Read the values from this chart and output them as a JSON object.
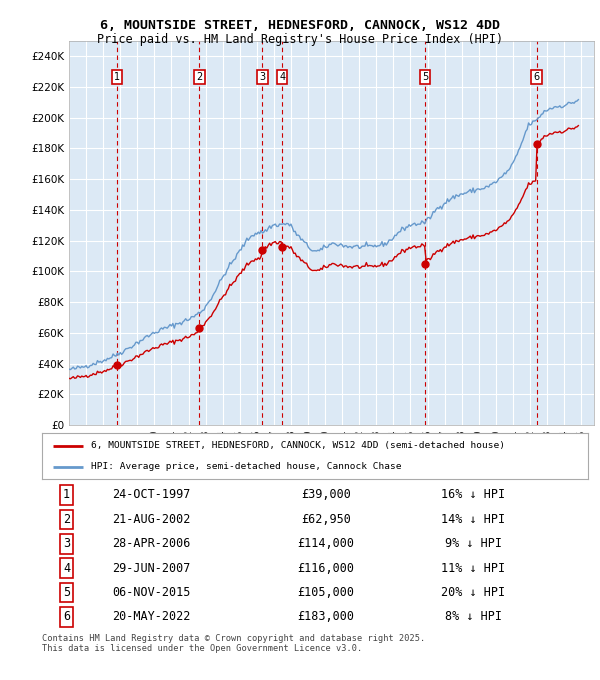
{
  "title_line1": "6, MOUNTSIDE STREET, HEDNESFORD, CANNOCK, WS12 4DD",
  "title_line2": "Price paid vs. HM Land Registry's House Price Index (HPI)",
  "ylim": [
    0,
    250000
  ],
  "yticks": [
    0,
    20000,
    40000,
    60000,
    80000,
    100000,
    120000,
    140000,
    160000,
    180000,
    200000,
    220000,
    240000
  ],
  "ytick_labels": [
    "£0",
    "£20K",
    "£40K",
    "£60K",
    "£80K",
    "£100K",
    "£120K",
    "£140K",
    "£160K",
    "£180K",
    "£200K",
    "£220K",
    "£240K"
  ],
  "xlim_start": 1995.0,
  "xlim_end": 2025.75,
  "bg_color": "#dce9f5",
  "grid_color": "#ffffff",
  "sale_dates_num": [
    1997.82,
    2002.64,
    2006.33,
    2007.49,
    2015.85,
    2022.39
  ],
  "sale_prices": [
    39000,
    62950,
    114000,
    116000,
    105000,
    183000
  ],
  "sale_labels": [
    "1",
    "2",
    "3",
    "4",
    "5",
    "6"
  ],
  "sale_color": "#cc0000",
  "hpi_color": "#6699cc",
  "legend_label_red": "6, MOUNTSIDE STREET, HEDNESFORD, CANNOCK, WS12 4DD (semi-detached house)",
  "legend_label_blue": "HPI: Average price, semi-detached house, Cannock Chase",
  "table_rows": [
    [
      "1",
      "24-OCT-1997",
      "£39,000",
      "16% ↓ HPI"
    ],
    [
      "2",
      "21-AUG-2002",
      "£62,950",
      "14% ↓ HPI"
    ],
    [
      "3",
      "28-APR-2006",
      "£114,000",
      "9% ↓ HPI"
    ],
    [
      "4",
      "29-JUN-2007",
      "£116,000",
      "11% ↓ HPI"
    ],
    [
      "5",
      "06-NOV-2015",
      "£105,000",
      "20% ↓ HPI"
    ],
    [
      "6",
      "20-MAY-2022",
      "£183,000",
      "8% ↓ HPI"
    ]
  ],
  "footer": "Contains HM Land Registry data © Crown copyright and database right 2025.\nThis data is licensed under the Open Government Licence v3.0."
}
